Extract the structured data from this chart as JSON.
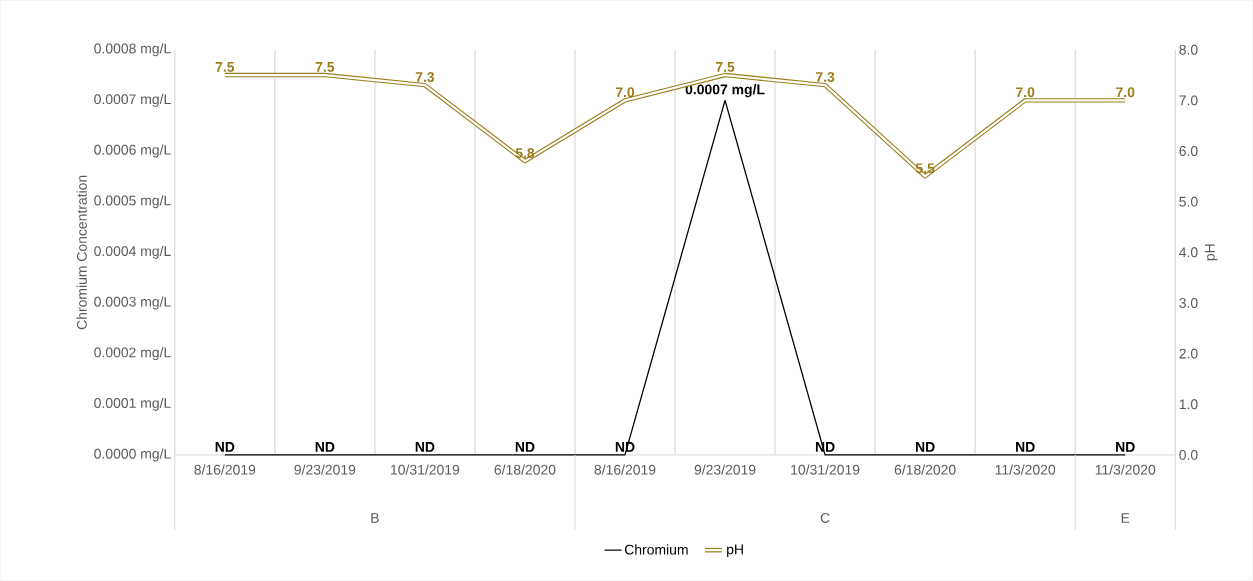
{
  "chart_data": {
    "type": "line",
    "categories": [
      "8/16/2019",
      "9/23/2019",
      "10/31/2019",
      "6/18/2020",
      "8/16/2019",
      "9/23/2019",
      "10/31/2019",
      "6/18/2020",
      "11/3/2020",
      "11/3/2020"
    ],
    "ylabel": "Chromium Concentration",
    "y2label": "pH",
    "ylim": [
      0,
      0.0008
    ],
    "yticks": [
      {
        "value": 0,
        "label": "0.0000 mg/L"
      },
      {
        "value": 0.0001,
        "label": "0.0001 mg/L"
      },
      {
        "value": 0.0002,
        "label": "0.0002 mg/L"
      },
      {
        "value": 0.0003,
        "label": "0.0003 mg/L"
      },
      {
        "value": 0.0004,
        "label": "0.0004 mg/L"
      },
      {
        "value": 0.0005,
        "label": "0.0005 mg/L"
      },
      {
        "value": 0.0006,
        "label": "0.0006 mg/L"
      },
      {
        "value": 0.0007,
        "label": "0.0007 mg/L"
      },
      {
        "value": 0.0008,
        "label": "0.0008 mg/L"
      }
    ],
    "y2lim": [
      0,
      8
    ],
    "y2ticks": [
      {
        "value": 0,
        "label": "0.0"
      },
      {
        "value": 1,
        "label": "1.0"
      },
      {
        "value": 2,
        "label": "2.0"
      },
      {
        "value": 3,
        "label": "3.0"
      },
      {
        "value": 4,
        "label": "4.0"
      },
      {
        "value": 5,
        "label": "5.0"
      },
      {
        "value": 6,
        "label": "6.0"
      },
      {
        "value": 7,
        "label": "7.0"
      },
      {
        "value": 8,
        "label": "8.0"
      }
    ],
    "grid": "x",
    "legend": "bottom",
    "annotations": [
      "B",
      "C",
      "E"
    ],
    "series": [
      {
        "name": "Chromium",
        "color": "#000000",
        "values": [
          0,
          0,
          0,
          0,
          0,
          0.0007,
          0,
          0,
          0,
          0
        ],
        "value_labels": [
          "ND",
          "ND",
          "ND",
          "ND",
          "ND",
          "0.0007 mg/L",
          "ND",
          "ND",
          "ND",
          "ND"
        ]
      },
      {
        "name": "pH",
        "color": "#9C7C1A",
        "axis": "y2",
        "values": [
          7.5,
          7.5,
          7.3,
          5.8,
          7.0,
          7.5,
          7.3,
          5.5,
          7.0,
          7.0
        ],
        "value_labels": [
          "7.5",
          "7.5",
          "7.3",
          "5.8",
          "7.0",
          "7.5",
          "7.3",
          "5.5",
          "7.0",
          "7.0"
        ]
      }
    ]
  }
}
